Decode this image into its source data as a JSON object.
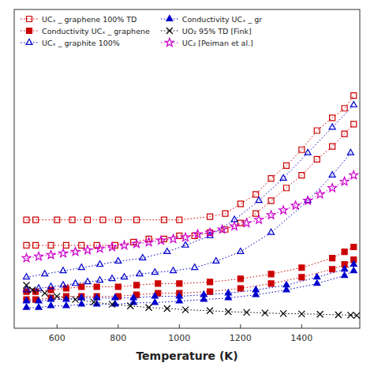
{
  "chart_data": {
    "type": "line",
    "xlabel": "Temperature (K)",
    "xlim": [
      460,
      1590
    ],
    "xticks": [
      600,
      800,
      1000,
      1200,
      1400
    ],
    "ylim": [
      0,
      100
    ],
    "yticks": [],
    "tick_labels": "x",
    "grid": false,
    "legend": "upper left",
    "series": [
      {
        "name": "UCₓ _ graphene 100% TD",
        "color": "#cc0000",
        "marker": "square-open",
        "line_style": "dotted",
        "x": [
          500,
          530,
          600,
          650,
          700,
          750,
          800,
          860,
          950,
          1000,
          1100,
          1150,
          1200,
          1250,
          1300,
          1350,
          1400,
          1450,
          1500,
          1540,
          1570
        ],
        "values": [
          34,
          34,
          34,
          34,
          34,
          34,
          34,
          34,
          34,
          34,
          35,
          36,
          39,
          42,
          47,
          51,
          56,
          62,
          66,
          69,
          73
        ]
      },
      {
        "color": "#cc0000",
        "marker": "square-open",
        "line_style": "dotted",
        "x": [
          500,
          530,
          580,
          630,
          680,
          730,
          790,
          850,
          900,
          950,
          1000,
          1050,
          1100,
          1150,
          1200,
          1250,
          1300,
          1350,
          1400,
          1450,
          1500,
          1540,
          1570
        ],
        "values": [
          26,
          26,
          26,
          26,
          26,
          26,
          26,
          27,
          28,
          28,
          29,
          29,
          30,
          31,
          33,
          36,
          40,
          44,
          48,
          53,
          57,
          61,
          64
        ]
      },
      {
        "name": "Conductivity UCₓ _ graphene",
        "color": "#cc0000",
        "marker": "square",
        "line_style": "dotted",
        "x": [
          500,
          530,
          580,
          630,
          680,
          730,
          800,
          860,
          930,
          1000,
          1100,
          1200,
          1300,
          1400,
          1500,
          1540,
          1570
        ],
        "values": [
          11.5,
          11.5,
          12,
          12.5,
          13,
          13,
          13,
          13.5,
          14,
          14,
          14.5,
          15.5,
          17,
          19,
          22,
          24,
          25.5
        ]
      },
      {
        "color": "#cc0000",
        "marker": "square",
        "line_style": "dotted",
        "x": [
          500,
          530,
          580,
          630,
          680,
          730,
          800,
          860,
          930,
          1000,
          1100,
          1200,
          1300,
          1400,
          1500,
          1540,
          1570
        ],
        "values": [
          9,
          9,
          9.5,
          10,
          10,
          10,
          10,
          10.5,
          11,
          11,
          11.5,
          12.5,
          14,
          16,
          18.5,
          20,
          21.5
        ]
      },
      {
        "name": "UCₓ _ graphite 100%",
        "color": "#0000cc",
        "marker": "triangle-open",
        "line_style": "dotted",
        "x": [
          500,
          560,
          620,
          680,
          740,
          800,
          880,
          960,
          1020,
          1100,
          1180,
          1260,
          1340,
          1420,
          1500,
          1570
        ],
        "values": [
          16,
          17,
          18,
          19,
          20,
          21,
          22,
          24,
          26,
          29,
          34,
          40,
          47,
          55,
          63,
          70
        ]
      },
      {
        "color": "#0000cc",
        "marker": "triangle-open",
        "line_style": "dotted",
        "x": [
          500,
          540,
          580,
          620,
          660,
          700,
          740,
          780,
          820,
          870,
          920,
          980,
          1050,
          1120,
          1200,
          1300,
          1420,
          1500,
          1560
        ],
        "values": [
          12,
          12.5,
          13,
          13.5,
          14,
          14.5,
          15,
          15.5,
          16,
          17,
          17.5,
          18,
          19,
          21,
          24,
          30,
          40,
          48,
          55
        ]
      },
      {
        "name": "Conductivity UCₓ _ gr",
        "color": "#0000cc",
        "marker": "triangle",
        "line_style": "dotted",
        "x": [
          500,
          540,
          580,
          630,
          680,
          730,
          790,
          850,
          920,
          1000,
          1080,
          1160,
          1250,
          1350,
          1450,
          1540,
          1570
        ],
        "values": [
          8.5,
          8.5,
          9,
          9,
          9.5,
          9.5,
          9.5,
          9.5,
          10,
          10,
          10.5,
          11,
          12,
          13.5,
          16,
          18.5,
          20
        ]
      },
      {
        "color": "#0000cc",
        "marker": "triangle",
        "line_style": "dotted",
        "x": [
          500,
          540,
          580,
          630,
          680,
          730,
          790,
          850,
          920,
          1000,
          1080,
          1160,
          1250,
          1350,
          1450,
          1540,
          1570
        ],
        "values": [
          6.5,
          6.5,
          7,
          7,
          7.5,
          7.5,
          7.5,
          8,
          8,
          8.5,
          9,
          9.5,
          10.5,
          12,
          14,
          16.5,
          18
        ]
      },
      {
        "name": "UO₂ 95% TD [Fink]",
        "color": "#000000",
        "marker": "x",
        "line_style": "dotted",
        "x": [
          500,
          520,
          560,
          600,
          660,
          720,
          780,
          840,
          900,
          960,
          1020,
          1100,
          1160,
          1220,
          1280,
          1340,
          1400,
          1460,
          1520,
          1560,
          1580
        ],
        "values": [
          13.5,
          12,
          11,
          10,
          9,
          8.2,
          7.5,
          7,
          6.5,
          6.2,
          5.8,
          5.5,
          5.2,
          5.0,
          4.8,
          4.6,
          4.5,
          4.4,
          4.2,
          4.1,
          4.0
        ]
      },
      {
        "name": "UC₂ [Peiman et al.]",
        "color": "#cc00cc",
        "marker": "star-open",
        "line_style": "dotted",
        "x": [
          500,
          540,
          580,
          620,
          660,
          700,
          740,
          780,
          820,
          860,
          900,
          940,
          980,
          1020,
          1060,
          1100,
          1140,
          1180,
          1220,
          1260,
          1300,
          1340,
          1380,
          1420,
          1460,
          1500,
          1540,
          1570
        ],
        "values": [
          22,
          22.5,
          23,
          23.5,
          24,
          24.5,
          25,
          25.5,
          26,
          26.5,
          27,
          27.5,
          28,
          28.5,
          29.5,
          30,
          31,
          32,
          33,
          34,
          35.5,
          37,
          38.5,
          40,
          42,
          44,
          46,
          48
        ]
      }
    ]
  }
}
